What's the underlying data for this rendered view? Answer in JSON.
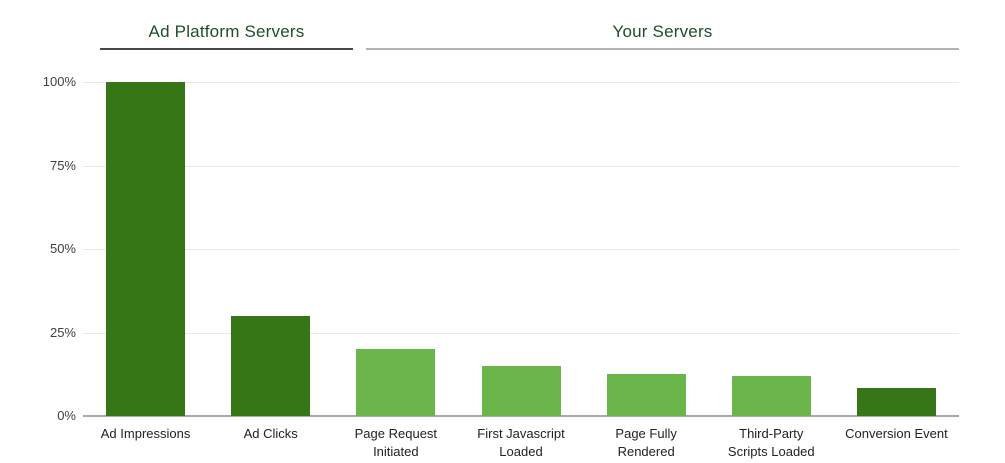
{
  "header": {
    "groups": [
      {
        "label": "Ad Platform Servers"
      },
      {
        "label": "Your Servers"
      }
    ]
  },
  "chart_data": {
    "type": "bar",
    "title": "",
    "xlabel": "",
    "ylabel": "",
    "ylim": [
      0,
      100
    ],
    "grid": true,
    "legend": "none",
    "categories": [
      "Ad Impressions",
      "Ad Clicks",
      "Page Request Initiated",
      "First Javascript Loaded",
      "Page Fully Rendered",
      "Third-Party Scripts Loaded",
      "Conversion Event"
    ],
    "category_lines": [
      [
        "Ad Impressions"
      ],
      [
        "Ad Clicks"
      ],
      [
        "Page Request",
        "Initiated"
      ],
      [
        "First Javascript",
        "Loaded"
      ],
      [
        "Page Fully",
        "Rendered"
      ],
      [
        "Third-Party",
        "Scripts Loaded"
      ],
      [
        "Conversion Event"
      ]
    ],
    "values": [
      100,
      30,
      20,
      15,
      12.5,
      12,
      8.5
    ],
    "value_unit": "%",
    "yticks": [
      {
        "label": "0%",
        "value": 0
      },
      {
        "label": "25%",
        "value": 25
      },
      {
        "label": "50%",
        "value": 50
      },
      {
        "label": "75%",
        "value": 75
      },
      {
        "label": "100%",
        "value": 100
      }
    ],
    "bar_colors": [
      "#377617",
      "#377617",
      "#6ab64a",
      "#6ab64a",
      "#6ab64a",
      "#6ab64a",
      "#377617"
    ],
    "groups": [
      {
        "label": "Ad Platform Servers",
        "from": 0,
        "to": 1
      },
      {
        "label": "Your Servers",
        "from": 2,
        "to": 6
      }
    ],
    "colors": {
      "dark_green_bar": "#377617",
      "light_green_bar": "#6ab64a",
      "group_title_text": "#1d4e2b",
      "group_line_dark": "#474747",
      "group_line_gray": "#b3b3b3",
      "grid_line": "#e9e9e9",
      "axis_line": "#a9a9a9",
      "tick_text": "#404040",
      "category_text": "#222222"
    }
  }
}
